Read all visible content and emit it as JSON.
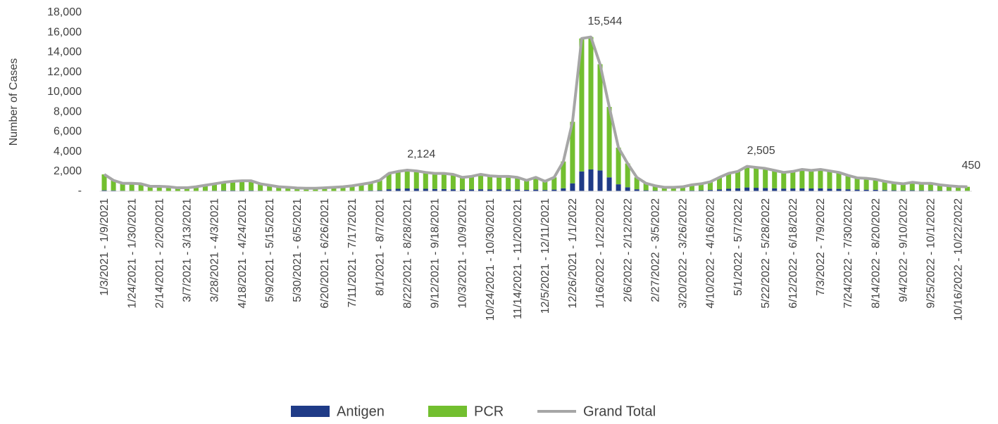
{
  "chart_data": {
    "type": "stacked-bar-line",
    "y_label": "Number of Cases",
    "categories": [
      "1/3/2021 - 1/9/2021",
      null,
      null,
      "1/24/2021 - 1/30/2021",
      null,
      null,
      "2/14/2021 - 2/20/2021",
      null,
      null,
      "3/7/2021 - 3/13/2021",
      null,
      null,
      "3/28/2021 - 4/3/2021",
      null,
      null,
      "4/18/2021 - 4/24/2021",
      null,
      null,
      "5/9/2021 - 5/15/2021",
      null,
      null,
      "5/30/2021 - 6/5/2021",
      null,
      null,
      "6/20/2021 - 6/26/2021",
      null,
      null,
      "7/11/2021 - 7/17/2021",
      null,
      null,
      "8/1/2021 - 8/7/2021",
      null,
      null,
      "8/22/2021 - 8/28/2021",
      null,
      null,
      "9/12/2021 - 9/18/2021",
      null,
      null,
      "10/3/2021 - 10/9/2021",
      null,
      null,
      "10/24/2021 - 10/30/2021",
      null,
      null,
      "11/14/2021 - 11/20/2021",
      null,
      null,
      "12/5/2021 - 12/11/2021",
      null,
      null,
      "12/26/2021 - 1/1/2022",
      null,
      null,
      "1/16/2022 - 1/22/2022",
      null,
      null,
      "2/6/2022 - 2/12/2022",
      null,
      null,
      "2/27/2022 - 3/5/2022",
      null,
      null,
      "3/20/2022 - 3/26/2022",
      null,
      null,
      "4/10/2022 - 4/16/2022",
      null,
      null,
      "5/1/2022 - 5/7/2022",
      null,
      null,
      "5/22/2022 - 5/28/2022",
      null,
      null,
      "6/12/2022 - 6/18/2022",
      null,
      null,
      "7/3/2022 - 7/9/2022",
      null,
      null,
      "7/24/2022 - 7/30/2022",
      null,
      null,
      "8/14/2022 - 8/20/2022",
      null,
      null,
      "9/4/2022 - 9/10/2022",
      null,
      null,
      "9/25/2022 - 10/1/2022",
      null,
      null,
      "10/16/2022 - 10/22/2022",
      null
    ],
    "series": [
      {
        "name": "Antigen",
        "color": "#1f3b87",
        "values": [
          100,
          80,
          60,
          60,
          50,
          40,
          40,
          30,
          30,
          30,
          40,
          50,
          60,
          80,
          80,
          80,
          80,
          60,
          50,
          40,
          30,
          30,
          30,
          30,
          30,
          30,
          40,
          50,
          60,
          80,
          100,
          200,
          250,
          280,
          270,
          250,
          230,
          220,
          200,
          170,
          180,
          200,
          190,
          180,
          180,
          170,
          140,
          170,
          130,
          170,
          300,
          800,
          2000,
          2200,
          2100,
          1400,
          700,
          400,
          200,
          100,
          70,
          50,
          50,
          60,
          80,
          100,
          130,
          180,
          250,
          300,
          380,
          350,
          330,
          300,
          270,
          280,
          300,
          280,
          290,
          260,
          240,
          200,
          170,
          160,
          150,
          120,
          100,
          90,
          100,
          90,
          90,
          70,
          60,
          50,
          50
        ]
      },
      {
        "name": "PCR",
        "color": "#72bf2f",
        "values": [
          1600,
          1020,
          740,
          740,
          700,
          460,
          460,
          420,
          320,
          320,
          410,
          550,
          690,
          820,
          920,
          970,
          970,
          690,
          550,
          410,
          370,
          300,
          270,
          270,
          320,
          370,
          410,
          500,
          640,
          770,
          1000,
          1600,
          1750,
          1844,
          1780,
          1650,
          1570,
          1580,
          1500,
          1230,
          1320,
          1500,
          1360,
          1320,
          1320,
          1230,
          960,
          1230,
          870,
          1230,
          2700,
          6200,
          13400,
          13344,
          10700,
          7100,
          3700,
          2400,
          1200,
          700,
          480,
          350,
          350,
          390,
          570,
          650,
          820,
          1220,
          1550,
          1700,
          2125,
          2050,
          1970,
          1800,
          1630,
          1720,
          1900,
          1820,
          1910,
          1790,
          1660,
          1400,
          1180,
          1140,
          1050,
          880,
          750,
          660,
          800,
          710,
          710,
          580,
          490,
          430,
          400
        ]
      },
      {
        "name": "Grand Total",
        "color": "#a6a6a6",
        "values": [
          1700,
          1100,
          800,
          800,
          750,
          500,
          500,
          450,
          350,
          350,
          450,
          600,
          750,
          900,
          1000,
          1050,
          1050,
          750,
          600,
          450,
          400,
          330,
          300,
          300,
          350,
          400,
          450,
          550,
          700,
          850,
          1100,
          1800,
          2000,
          2124,
          2050,
          1900,
          1800,
          1800,
          1700,
          1400,
          1500,
          1700,
          1550,
          1500,
          1500,
          1400,
          1100,
          1400,
          1000,
          1400,
          3000,
          7000,
          15400,
          15544,
          12800,
          8500,
          4400,
          2800,
          1400,
          800,
          550,
          400,
          400,
          450,
          650,
          750,
          950,
          1400,
          1800,
          2000,
          2505,
          2400,
          2300,
          2100,
          1900,
          2000,
          2200,
          2100,
          2200,
          2050,
          1900,
          1600,
          1350,
          1300,
          1200,
          1000,
          850,
          750,
          900,
          800,
          800,
          650,
          550,
          480,
          450
        ],
        "value_labels": [
          null,
          null,
          null,
          null,
          null,
          null,
          null,
          null,
          null,
          null,
          null,
          null,
          null,
          null,
          null,
          null,
          null,
          null,
          null,
          null,
          null,
          null,
          null,
          null,
          null,
          null,
          null,
          null,
          null,
          null,
          null,
          null,
          null,
          "2,124",
          null,
          null,
          null,
          null,
          null,
          null,
          null,
          null,
          null,
          null,
          null,
          null,
          null,
          null,
          null,
          null,
          null,
          null,
          null,
          "15,544",
          null,
          null,
          null,
          null,
          null,
          null,
          null,
          null,
          null,
          null,
          null,
          null,
          null,
          null,
          null,
          null,
          "2,505",
          null,
          null,
          null,
          null,
          null,
          null,
          null,
          null,
          null,
          null,
          null,
          null,
          null,
          null,
          null,
          null,
          null,
          null,
          null,
          null,
          null,
          null,
          null,
          "450"
        ]
      }
    ],
    "ylim": [
      0,
      18000
    ],
    "yticks": [
      {
        "value": 0,
        "label": "-"
      },
      {
        "value": 2000,
        "label": "2,000"
      },
      {
        "value": 4000,
        "label": "4,000"
      },
      {
        "value": 6000,
        "label": "6,000"
      },
      {
        "value": 8000,
        "label": "8,000"
      },
      {
        "value": 10000,
        "label": "10,000"
      },
      {
        "value": 12000,
        "label": "12,000"
      },
      {
        "value": 14000,
        "label": "14,000"
      },
      {
        "value": 16000,
        "label": "16,000"
      },
      {
        "value": 18000,
        "label": "18,000"
      }
    ],
    "grid": false
  }
}
